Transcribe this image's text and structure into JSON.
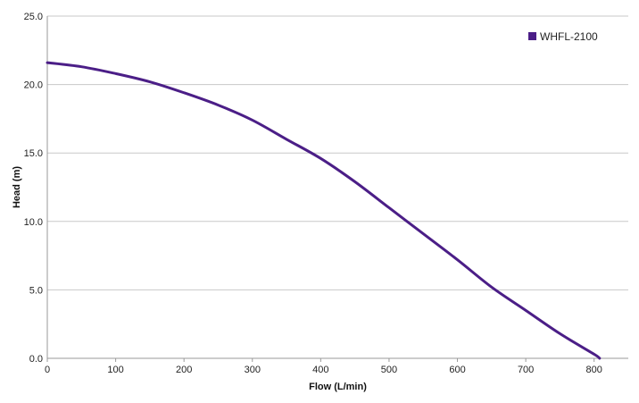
{
  "chart_data": {
    "type": "line",
    "title": "",
    "xlabel": "Flow (L/min)",
    "ylabel": "Head (m)",
    "xlim": [
      0,
      850
    ],
    "ylim": [
      0,
      25
    ],
    "x_ticks": [
      0,
      100,
      200,
      300,
      400,
      500,
      600,
      700,
      800
    ],
    "y_ticks": [
      "0.0",
      "5.0",
      "10.0",
      "15.0",
      "20.0",
      "25.0"
    ],
    "grid": "horizontal",
    "legend": "top-right",
    "series": [
      {
        "name": "WHFL-2100",
        "color": "#4b1e87",
        "x": [
          0,
          50,
          100,
          150,
          200,
          250,
          300,
          350,
          400,
          450,
          500,
          550,
          600,
          650,
          700,
          750,
          800,
          808
        ],
        "y": [
          21.6,
          21.3,
          20.8,
          20.2,
          19.4,
          18.5,
          17.4,
          16.0,
          14.6,
          12.9,
          11.0,
          9.1,
          7.2,
          5.2,
          3.5,
          1.8,
          0.3,
          0.0
        ]
      }
    ]
  }
}
